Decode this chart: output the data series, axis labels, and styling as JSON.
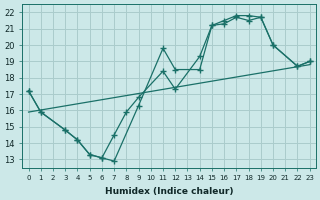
{
  "xlabel": "Humidex (Indice chaleur)",
  "bg_color": "#cce8e8",
  "grid_color": "#aacccc",
  "line_color": "#1a7068",
  "xlim": [
    -0.5,
    23.5
  ],
  "ylim": [
    12.5,
    22.5
  ],
  "xticks": [
    0,
    1,
    2,
    3,
    4,
    5,
    6,
    7,
    8,
    9,
    10,
    11,
    12,
    13,
    14,
    15,
    16,
    17,
    18,
    19,
    20,
    21,
    22,
    23
  ],
  "yticks": [
    13,
    14,
    15,
    16,
    17,
    18,
    19,
    20,
    21,
    22
  ],
  "line1_x": [
    0,
    1,
    3,
    4,
    5,
    6,
    7,
    9,
    11,
    12,
    14,
    15,
    16,
    17,
    18,
    19,
    20,
    22,
    23
  ],
  "line1_y": [
    17.2,
    15.9,
    14.8,
    14.2,
    13.3,
    13.1,
    12.9,
    16.3,
    19.8,
    18.5,
    18.5,
    21.2,
    21.5,
    21.8,
    21.8,
    21.7,
    20.0,
    18.7,
    19.0
  ],
  "line2_x": [
    0,
    1,
    3,
    4,
    5,
    6,
    7,
    8,
    9,
    11,
    12,
    14,
    15,
    16,
    17,
    18,
    19,
    20,
    22,
    23
  ],
  "line2_y": [
    17.2,
    15.9,
    14.8,
    14.2,
    13.3,
    13.1,
    14.5,
    15.9,
    16.8,
    18.4,
    17.3,
    19.3,
    21.2,
    21.3,
    21.7,
    21.5,
    21.7,
    20.0,
    18.7,
    19.0
  ],
  "line3_x": [
    0,
    23
  ],
  "line3_y": [
    15.9,
    18.8
  ]
}
